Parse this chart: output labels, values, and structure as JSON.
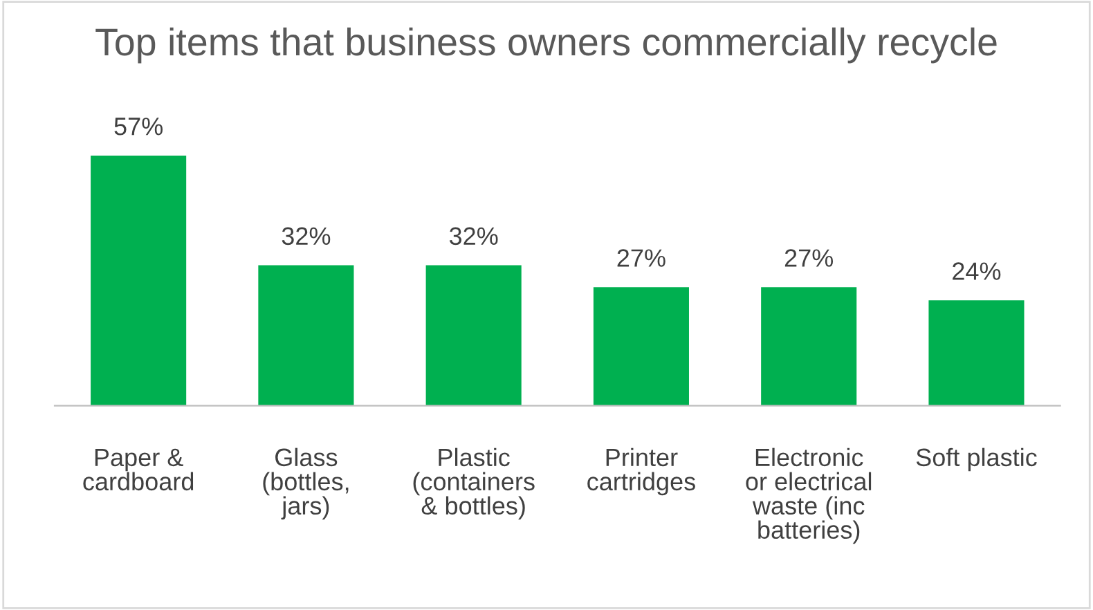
{
  "chart_data": {
    "type": "bar",
    "title": "Top items that business owners commercially recycle",
    "categories": [
      "Paper &\ncardboard",
      "Glass\n(bottles,\njars)",
      "Plastic\n(containers\n& bottles)",
      "Printer\ncartridges",
      "Electronic\nor electrical\nwaste (inc\nbatteries)",
      "Soft plastic"
    ],
    "values": [
      57,
      32,
      32,
      27,
      27,
      24
    ],
    "value_labels": [
      "57%",
      "32%",
      "32%",
      "27%",
      "27%",
      "24%"
    ],
    "color": "#00b050",
    "grid": false,
    "legend": false
  }
}
